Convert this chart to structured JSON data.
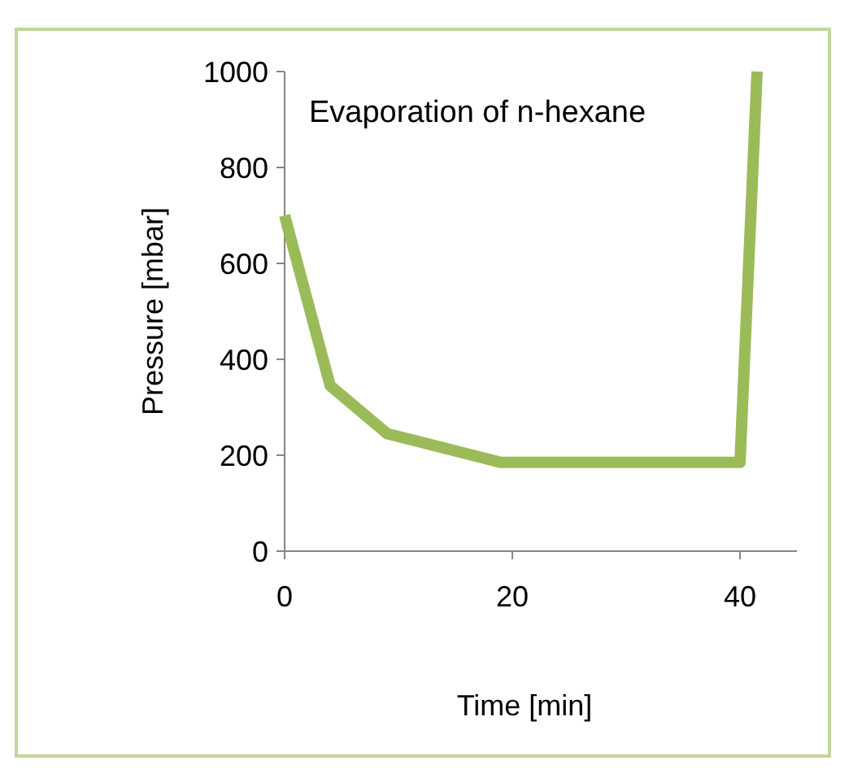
{
  "chart_data": {
    "type": "line",
    "title": "Evaporation of n-hexane",
    "xlabel": "Time [min]",
    "ylabel": "Pressure [mbar]",
    "x": [
      0,
      4,
      9,
      19,
      40,
      41.5
    ],
    "series": [
      {
        "color": "#9bbb59",
        "values": [
          700,
          345,
          245,
          185,
          185,
          1000
        ]
      }
    ],
    "xlim": [
      0,
      45
    ],
    "xticks": [
      0,
      20,
      40
    ],
    "ylim": [
      0,
      1000
    ],
    "yticks": [
      0,
      200,
      400,
      600,
      800,
      1000
    ],
    "grid": false,
    "marker": "none"
  }
}
